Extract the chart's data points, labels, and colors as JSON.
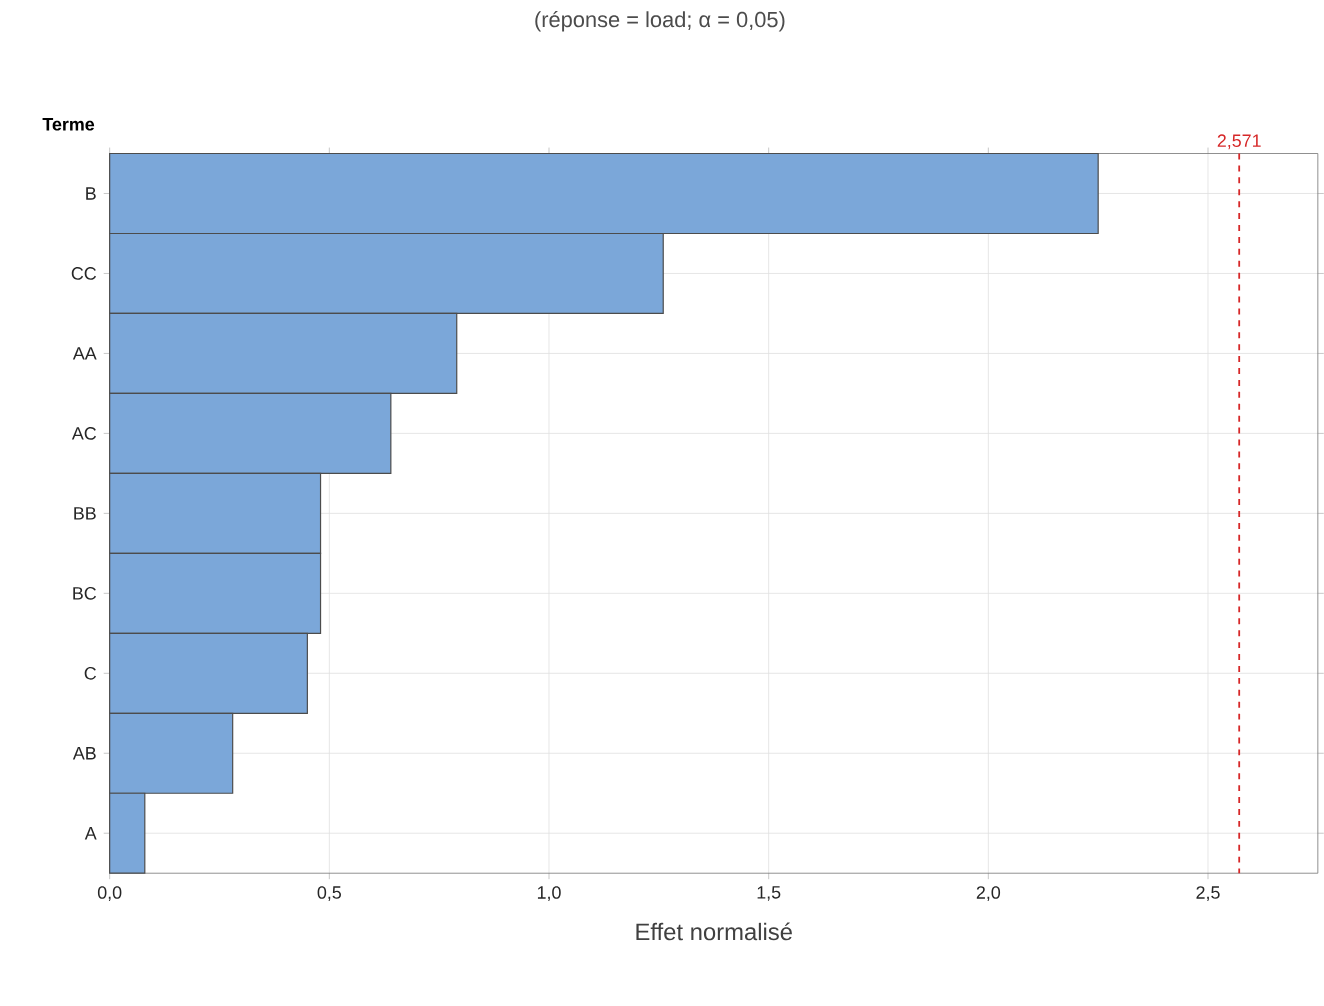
{
  "chart_data": {
    "type": "bar",
    "orientation": "horizontal",
    "title": "(réponse = load; α = 0,05)",
    "ylabel": "Terme",
    "xlabel": "Effet normalisé",
    "categories": [
      "B",
      "CC",
      "AA",
      "AC",
      "BB",
      "BC",
      "C",
      "AB",
      "A"
    ],
    "values": [
      2.25,
      1.26,
      0.79,
      0.64,
      0.48,
      0.48,
      0.45,
      0.28,
      0.08
    ],
    "color": "#7ba7d9",
    "xlim": [
      0,
      2.75
    ],
    "xticks": [
      {
        "value": 0,
        "label": "0,0"
      },
      {
        "value": 0.5,
        "label": "0,5"
      },
      {
        "value": 1.0,
        "label": "1,0"
      },
      {
        "value": 1.5,
        "label": "1,5"
      },
      {
        "value": 2.0,
        "label": "2,0"
      },
      {
        "value": 2.5,
        "label": "2,5"
      }
    ],
    "ref_lines": [
      {
        "axis": "x",
        "value": 2.571,
        "label": "2,571",
        "color": "#d62728",
        "line_style": "dashed"
      }
    ],
    "grid": true
  }
}
